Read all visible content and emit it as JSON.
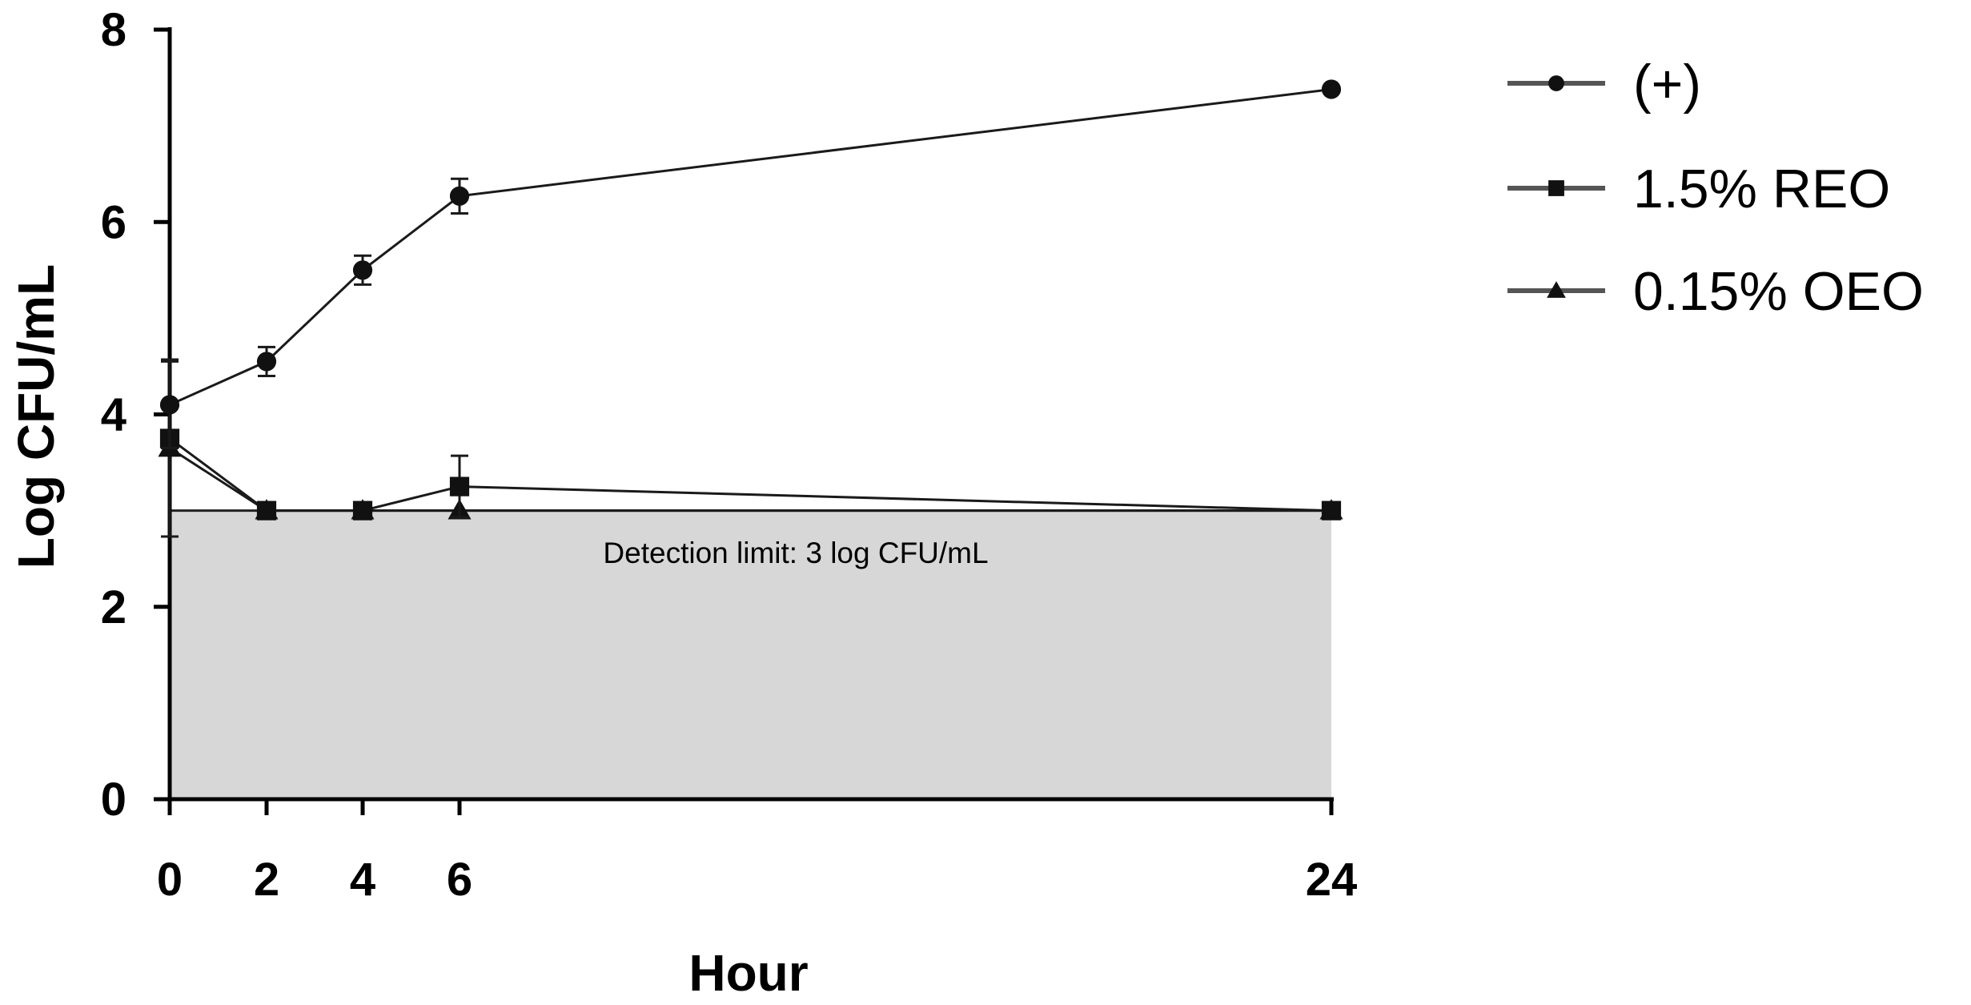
{
  "chart_data": {
    "type": "line",
    "title": "",
    "xlabel": "Hour",
    "ylabel": "Log CFU/mL",
    "x": [
      0,
      2,
      4,
      6,
      24
    ],
    "x_ticks": [
      "0",
      "2",
      "4",
      "6",
      "24"
    ],
    "y_ticks": [
      "0",
      "2",
      "4",
      "6",
      "8"
    ],
    "ylim": [
      0,
      8
    ],
    "grid": false,
    "legend_position": "top-right",
    "series": [
      {
        "name": "(+)",
        "marker": "circle",
        "values": [
          4.1,
          4.55,
          5.5,
          6.27,
          7.38
        ],
        "errors": [
          0.45,
          0.15,
          0.15,
          0.18,
          0.03
        ]
      },
      {
        "name": "1.5% REO",
        "marker": "square",
        "values": [
          3.75,
          3.0,
          3.0,
          3.25,
          3.0
        ],
        "errors": [
          0.0,
          0.0,
          0.0,
          0.32,
          0.0
        ]
      },
      {
        "name": "0.15% OEO",
        "marker": "triangle",
        "values": [
          3.65,
          3.0,
          3.0,
          3.0,
          3.0
        ],
        "errors": [
          0.92,
          0.0,
          0.0,
          0.0,
          0.0
        ]
      }
    ],
    "detection_limit": {
      "value": 3,
      "label": "Detection limit: 3 log CFU/mL",
      "fill_color": "#d7d7d7"
    },
    "colors": {
      "line": "#1a1a1a",
      "marker": "#111111",
      "legend_line": "#555555"
    }
  }
}
